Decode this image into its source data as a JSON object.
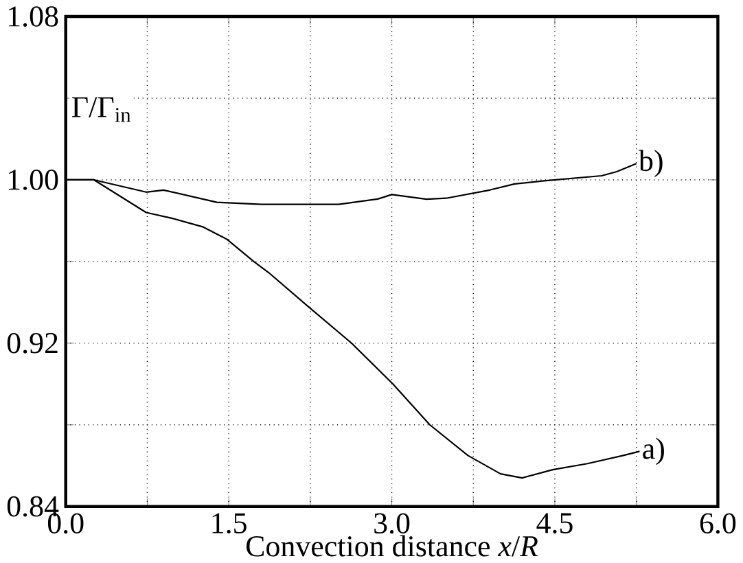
{
  "chart_data": {
    "type": "line",
    "xlabel": "Convection distance *x*/*R*",
    "ylabel": "Γ/Γ$_{in}$",
    "xlim": [
      0,
      6
    ],
    "ylim": [
      0.84,
      1.08
    ],
    "xticks": [
      {
        "value": 0,
        "label": "0.0"
      },
      {
        "value": 0.75,
        "label": null
      },
      1.5,
      {
        "value": 2.25,
        "label": null
      },
      {
        "value": 3,
        "label": "3.0"
      },
      {
        "value": 3.75,
        "label": null
      },
      4.5,
      {
        "value": 5.25,
        "label": null
      },
      {
        "value": 6,
        "label": "6.0"
      }
    ],
    "yticks": [
      0.84,
      {
        "value": 0.88,
        "label": null
      },
      0.92,
      {
        "value": 0.96,
        "label": null
      },
      {
        "value": 1.0,
        "label": "1.00"
      },
      {
        "value": 1.04,
        "label": null
      },
      1.08
    ],
    "grid": true,
    "line_style": "solid",
    "marker": "none",
    "series": [
      {
        "name": "a)",
        "color": "#000000",
        "x": [
          0,
          0.26,
          0.74,
          0.99,
          1.26,
          1.48,
          1.73,
          1.88,
          2.23,
          2.63,
          3.01,
          3.35,
          3.7,
          4.0,
          4.2,
          4.48,
          4.8,
          5.13,
          5.28
        ],
        "values": [
          1.0,
          1.0,
          0.984,
          0.981,
          0.977,
          0.971,
          0.96,
          0.954,
          0.938,
          0.92,
          0.9,
          0.88,
          0.865,
          0.856,
          0.854,
          0.858,
          0.861,
          0.865,
          0.867
        ]
      },
      {
        "name": "b)",
        "color": "#000000",
        "x": [
          0,
          0.26,
          0.74,
          0.9,
          1.39,
          1.8,
          2.24,
          2.51,
          2.87,
          3.0,
          3.32,
          3.5,
          3.9,
          4.13,
          4.4,
          4.93,
          5.07,
          5.25
        ],
        "values": [
          1.0,
          1.0,
          0.994,
          0.995,
          0.989,
          0.988,
          0.988,
          0.988,
          0.9906,
          0.9928,
          0.9905,
          0.991,
          0.995,
          0.998,
          0.9995,
          1.002,
          1.004,
          1.008
        ]
      }
    ]
  }
}
